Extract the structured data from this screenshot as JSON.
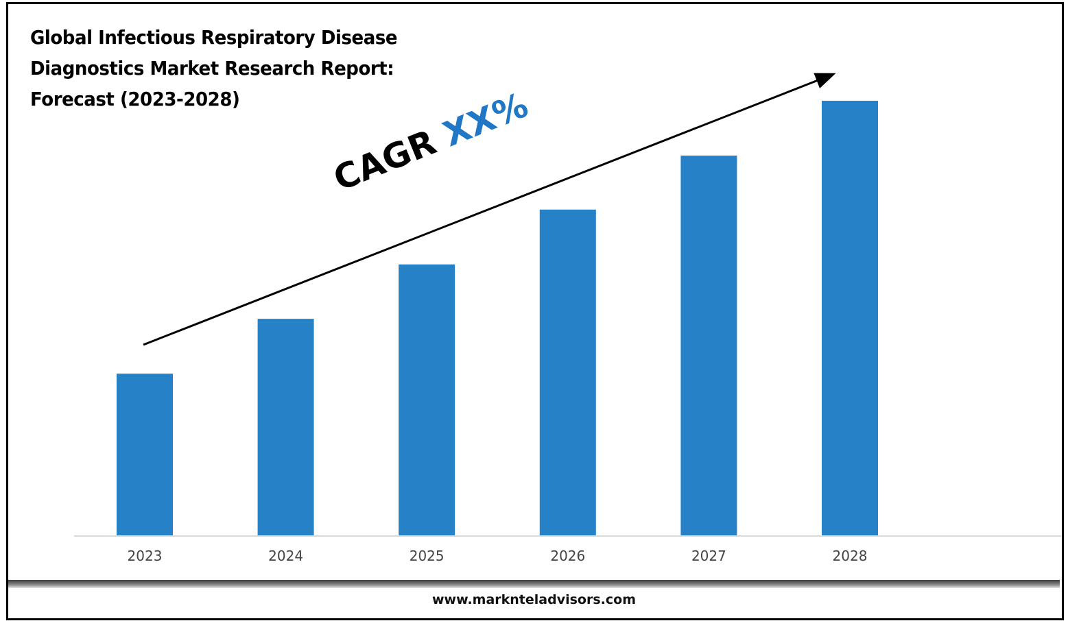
{
  "title": "Global Infectious Respiratory Disease\nDiagnostics Market Research Report:\nForecast (2023-2028)",
  "annotation": {
    "label": "CAGR",
    "value": "XX%",
    "value_color": "#1f77c6"
  },
  "footer": {
    "url": "www.marknteladvisors.com"
  },
  "chart_data": {
    "type": "bar",
    "title": "Global Infectious Respiratory Disease Diagnostics Market Research Report: Forecast (2023-2028)",
    "categories": [
      "2023",
      "2024",
      "2025",
      "2026",
      "2027",
      "2028"
    ],
    "values": [
      0.373,
      0.499,
      0.624,
      0.75,
      0.874,
      1.0
    ],
    "value_units": "relative bar height (approx.)",
    "xlabel": "",
    "ylabel": "",
    "ylim": [
      0,
      1.0
    ],
    "grid": false,
    "legend": "none",
    "bar_color": "#2781c6",
    "annotations": [
      "CAGR XX%",
      "upward trend arrow"
    ]
  }
}
